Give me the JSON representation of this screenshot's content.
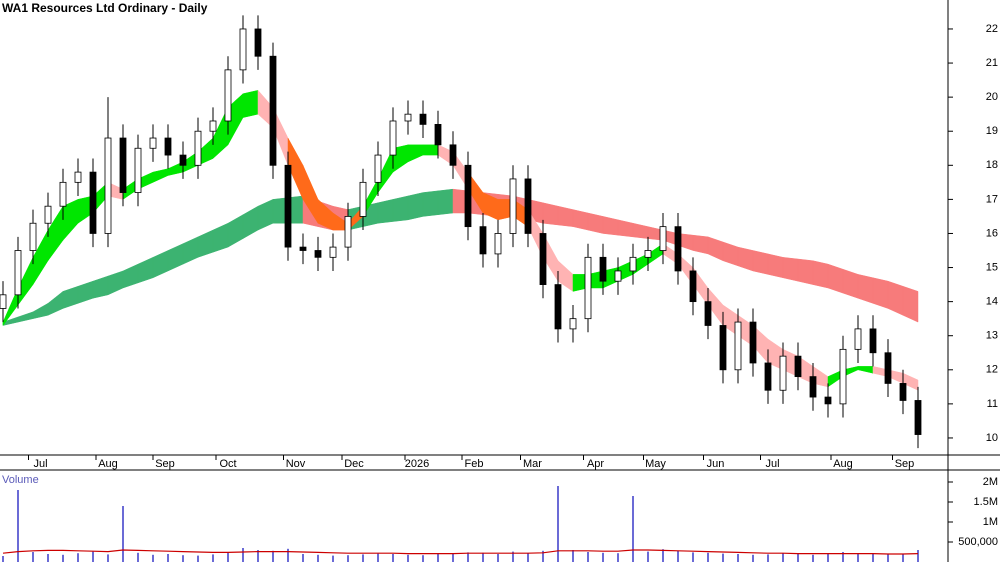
{
  "chart_data": {
    "type": "candlestick",
    "title": "WA1 Resources Ltd Ordinary - Daily",
    "open": [
      13.8,
      14.2,
      15.5,
      16.3,
      16.8,
      17.5,
      17.8,
      16.0,
      18.8,
      17.2,
      18.5,
      18.8,
      18.3,
      18.0,
      19.0,
      19.3,
      20.8,
      22.0,
      21.2,
      18.0,
      15.6,
      15.5,
      15.3,
      15.6,
      16.5,
      17.5,
      18.3,
      19.3,
      19.5,
      19.2,
      18.6,
      18.0,
      16.2,
      15.4,
      16.0,
      17.6,
      16.0,
      14.5,
      13.2,
      13.5,
      15.3,
      14.6,
      14.9,
      15.3,
      15.5,
      16.2,
      14.9,
      14.0,
      13.3,
      12.0,
      13.4,
      12.2,
      11.4,
      12.4,
      11.8,
      11.2,
      11.0,
      12.6,
      13.2,
      12.5,
      11.6,
      11.1
    ],
    "high": [
      14.6,
      15.9,
      16.7,
      17.2,
      17.9,
      18.2,
      18.2,
      20.0,
      19.2,
      18.9,
      19.2,
      19.2,
      18.7,
      19.4,
      19.7,
      21.2,
      22.4,
      22.4,
      21.6,
      18.4,
      16.0,
      15.9,
      16.0,
      16.9,
      17.9,
      18.7,
      19.7,
      19.9,
      19.9,
      19.6,
      19.0,
      18.4,
      16.6,
      16.4,
      18.0,
      18.0,
      16.4,
      14.9,
      13.9,
      15.7,
      15.7,
      15.3,
      15.7,
      15.9,
      16.6,
      16.6,
      15.3,
      14.4,
      13.7,
      13.8,
      13.8,
      12.6,
      12.8,
      12.8,
      12.2,
      11.6,
      13.0,
      13.6,
      13.6,
      12.9,
      12.0,
      11.5
    ],
    "low": [
      13.4,
      13.8,
      15.1,
      15.9,
      16.4,
      17.1,
      15.6,
      15.6,
      16.8,
      16.8,
      18.1,
      17.9,
      17.6,
      17.6,
      18.6,
      18.9,
      20.4,
      20.8,
      17.6,
      15.2,
      15.1,
      14.9,
      14.9,
      15.2,
      16.1,
      17.1,
      17.9,
      18.9,
      18.8,
      18.2,
      17.6,
      15.8,
      15.0,
      15.0,
      15.6,
      15.6,
      14.1,
      12.8,
      12.8,
      13.1,
      14.2,
      14.2,
      14.5,
      14.9,
      15.1,
      14.5,
      13.6,
      12.9,
      11.6,
      11.6,
      11.8,
      11.0,
      11.0,
      11.4,
      10.8,
      10.6,
      10.6,
      12.2,
      12.1,
      11.2,
      10.7,
      9.7
    ],
    "close": [
      14.2,
      15.5,
      16.3,
      16.8,
      17.5,
      17.8,
      16.0,
      18.8,
      17.2,
      18.5,
      18.8,
      18.3,
      18.0,
      19.0,
      19.3,
      20.8,
      22.0,
      21.2,
      18.0,
      15.6,
      15.5,
      15.3,
      15.6,
      16.5,
      17.5,
      18.3,
      19.3,
      19.5,
      19.2,
      18.6,
      18.0,
      16.2,
      15.4,
      16.0,
      17.6,
      16.0,
      14.5,
      13.2,
      13.5,
      15.3,
      14.6,
      14.9,
      15.3,
      15.5,
      16.2,
      14.9,
      14.0,
      13.3,
      12.0,
      13.4,
      12.2,
      11.4,
      12.4,
      11.8,
      11.2,
      11.0,
      12.6,
      13.2,
      12.5,
      11.6,
      11.1,
      10.1
    ],
    "short_ribbon": {
      "upper": [
        13.4,
        14.4,
        15.3,
        16.1,
        16.8,
        17.0,
        17.1,
        17.5,
        17.3,
        17.6,
        17.8,
        17.9,
        18.1,
        18.4,
        18.8,
        19.7,
        20.1,
        20.2,
        19.7,
        18.8,
        18.0,
        17.0,
        16.6,
        16.3,
        16.8,
        17.6,
        18.5,
        18.6,
        18.6,
        18.6,
        18.4,
        17.8,
        17.2,
        17.0,
        17.0,
        16.7,
        16.0,
        15.2,
        14.8,
        14.8,
        14.9,
        15.0,
        15.2,
        15.4,
        15.7,
        15.4,
        15.0,
        14.4,
        13.9,
        13.6,
        13.3,
        12.9,
        12.6,
        12.4,
        12.1,
        11.8,
        12.0,
        12.1,
        12.1,
        12.0,
        11.9,
        11.7
      ],
      "lower": [
        13.3,
        13.9,
        14.5,
        15.2,
        15.8,
        16.3,
        16.6,
        17.1,
        17.0,
        17.3,
        17.5,
        17.7,
        17.8,
        18.0,
        18.2,
        18.6,
        19.4,
        19.5,
        19.1,
        18.0,
        17.0,
        16.3,
        16.1,
        16.1,
        16.5,
        17.2,
        17.8,
        18.1,
        18.3,
        18.3,
        18.0,
        17.3,
        16.6,
        16.4,
        16.5,
        16.2,
        15.3,
        14.6,
        14.3,
        14.4,
        14.4,
        14.6,
        14.8,
        15.1,
        15.4,
        15.1,
        14.5,
        13.9,
        13.3,
        13.0,
        12.7,
        12.2,
        12.0,
        11.8,
        11.6,
        11.5,
        11.8,
        12.0,
        11.9,
        11.8,
        11.6,
        11.4
      ]
    },
    "long_ribbon": {
      "upper": [
        13.4,
        13.55,
        13.7,
        13.95,
        14.3,
        14.45,
        14.6,
        14.75,
        14.9,
        15.1,
        15.3,
        15.5,
        15.7,
        15.9,
        16.1,
        16.3,
        16.55,
        16.8,
        17.0,
        17.05,
        17.1,
        16.95,
        16.8,
        16.7,
        16.8,
        16.9,
        17.0,
        17.1,
        17.2,
        17.25,
        17.3,
        17.25,
        17.2,
        17.15,
        17.1,
        17.0,
        16.9,
        16.8,
        16.7,
        16.6,
        16.5,
        16.4,
        16.3,
        16.2,
        16.1,
        16.0,
        15.95,
        15.9,
        15.75,
        15.6,
        15.5,
        15.4,
        15.3,
        15.25,
        15.2,
        15.1,
        14.95,
        14.8,
        14.7,
        14.6,
        14.45,
        14.3
      ],
      "lower": [
        13.3,
        13.4,
        13.5,
        13.6,
        13.8,
        13.95,
        14.1,
        14.2,
        14.4,
        14.55,
        14.7,
        14.9,
        15.1,
        15.3,
        15.45,
        15.6,
        15.85,
        16.1,
        16.3,
        16.3,
        16.3,
        16.2,
        16.1,
        16.1,
        16.2,
        16.3,
        16.35,
        16.4,
        16.5,
        16.55,
        16.6,
        16.6,
        16.55,
        16.5,
        16.5,
        16.4,
        16.3,
        16.25,
        16.2,
        16.1,
        16.0,
        15.95,
        15.9,
        15.85,
        15.8,
        15.65,
        15.5,
        15.4,
        15.2,
        15.05,
        14.9,
        14.8,
        14.7,
        14.6,
        14.5,
        14.4,
        14.25,
        14.1,
        13.95,
        13.8,
        13.6,
        13.4
      ]
    },
    "ylim": [
      9.5,
      22.85
    ],
    "yticks": [
      10,
      11,
      12,
      13,
      14,
      15,
      16,
      17,
      18,
      19,
      20,
      21,
      22
    ],
    "xlim": [
      0,
      63
    ],
    "xticks": [
      {
        "value": 2.5,
        "label": "Jul"
      },
      {
        "value": 7,
        "label": "Aug"
      },
      {
        "value": 10.8,
        "label": "Sep"
      },
      {
        "value": 15,
        "label": "Oct"
      },
      {
        "value": 19.5,
        "label": "Nov"
      },
      {
        "value": 23.4,
        "label": "Dec"
      },
      {
        "value": 27.6,
        "label": "2026"
      },
      {
        "value": 31.4,
        "label": "Feb"
      },
      {
        "value": 35.3,
        "label": "Mar"
      },
      {
        "value": 39.5,
        "label": "Apr"
      },
      {
        "value": 43.5,
        "label": "May"
      },
      {
        "value": 47.5,
        "label": "Jun"
      },
      {
        "value": 51.3,
        "label": "Jul"
      },
      {
        "value": 56,
        "label": "Aug"
      },
      {
        "value": 60.1,
        "label": "Sep"
      }
    ],
    "volume": {
      "label": "Volume",
      "values": [
        150000,
        1800000,
        250000,
        200000,
        180000,
        220000,
        260000,
        190000,
        1400000,
        230000,
        180000,
        200000,
        170000,
        160000,
        190000,
        230000,
        350000,
        300000,
        280000,
        330000,
        200000,
        180000,
        160000,
        170000,
        190000,
        210000,
        200000,
        180000,
        170000,
        200000,
        220000,
        240000,
        230000,
        200000,
        260000,
        220000,
        280000,
        1900000,
        300000,
        250000,
        230000,
        220000,
        1650000,
        260000,
        320000,
        280000,
        240000,
        230000,
        210000,
        200000,
        180000,
        190000,
        220000,
        200000,
        180000,
        210000,
        250000,
        220000,
        200000,
        190000,
        210000,
        300000
      ],
      "ma": [
        220000,
        260000,
        280000,
        290000,
        290000,
        280000,
        270000,
        260000,
        300000,
        290000,
        280000,
        270000,
        260000,
        250000,
        240000,
        240000,
        250000,
        260000,
        260000,
        260000,
        250000,
        240000,
        230000,
        220000,
        220000,
        220000,
        220000,
        210000,
        210000,
        210000,
        210000,
        220000,
        220000,
        220000,
        220000,
        220000,
        230000,
        280000,
        280000,
        280000,
        270000,
        270000,
        300000,
        300000,
        290000,
        280000,
        270000,
        260000,
        250000,
        240000,
        230000,
        220000,
        220000,
        210000,
        210000,
        210000,
        210000,
        210000,
        210000,
        200000,
        200000,
        210000
      ],
      "ylim": [
        0,
        2300000
      ],
      "yticks": [
        {
          "value": 500000,
          "label": "500,000"
        },
        {
          "value": 1000000,
          "label": "1M"
        },
        {
          "value": 1500000,
          "label": "1.5M"
        },
        {
          "value": 2000000,
          "label": "2M"
        }
      ]
    },
    "colors": {
      "rising": "#00e600",
      "falling": "#ffb3b3",
      "mixed": "#ff6a1a",
      "long_rising": "#3cb371",
      "long_falling": "#f77b7b",
      "up_candle": "#ffffff",
      "down_candle": "#000000",
      "volume": "#6b6bd6",
      "volume_ma": "#cc0000"
    }
  }
}
